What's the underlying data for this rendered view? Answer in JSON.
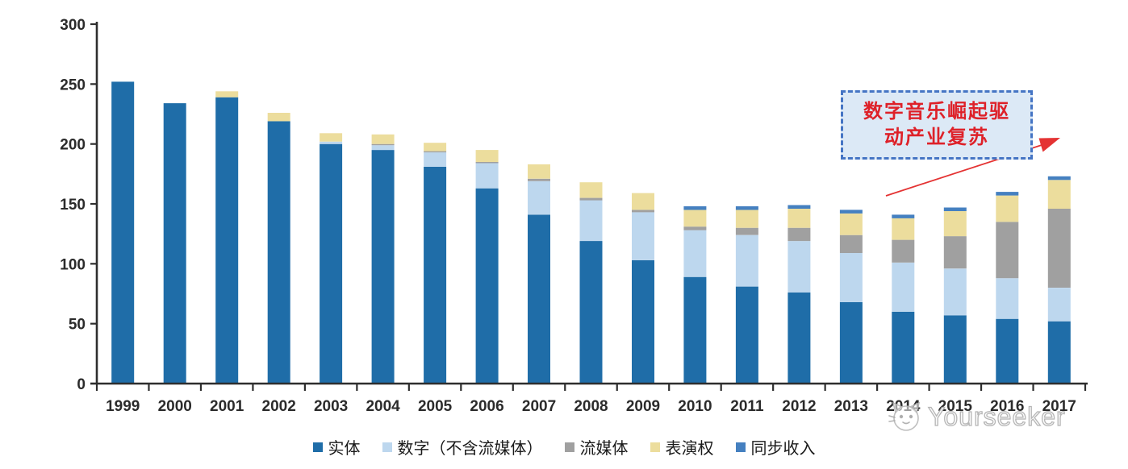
{
  "chart_data": {
    "type": "bar",
    "stacked": true,
    "title": "",
    "categories": [
      "1999",
      "2000",
      "2001",
      "2002",
      "2003",
      "2004",
      "2005",
      "2006",
      "2007",
      "2008",
      "2009",
      "2010",
      "2011",
      "2012",
      "2013",
      "2014",
      "2015",
      "2016",
      "2017"
    ],
    "series": [
      {
        "name": "实体",
        "color": "#1f6da8",
        "values": [
          252,
          234,
          239,
          219,
          200,
          195,
          181,
          163,
          141,
          119,
          103,
          89,
          81,
          76,
          68,
          60,
          57,
          54,
          52
        ]
      },
      {
        "name": "数字（不含流媒体）",
        "color": "#bdd7ee",
        "values": [
          0,
          0,
          0,
          0,
          2,
          4,
          12,
          21,
          28,
          34,
          40,
          39,
          43,
          43,
          41,
          41,
          39,
          34,
          28
        ]
      },
      {
        "name": "流媒体",
        "color": "#a0a0a0",
        "values": [
          0,
          0,
          0,
          0,
          0,
          1,
          1,
          1,
          2,
          2,
          2,
          3,
          6,
          11,
          15,
          19,
          27,
          47,
          66
        ]
      },
      {
        "name": "表演权",
        "color": "#ecdd9d",
        "values": [
          0,
          0,
          5,
          7,
          7,
          8,
          7,
          10,
          12,
          13,
          14,
          14,
          15,
          16,
          18,
          18,
          21,
          22,
          24
        ]
      },
      {
        "name": "同步收入",
        "color": "#4580c0",
        "values": [
          0,
          0,
          0,
          0,
          0,
          0,
          0,
          0,
          0,
          0,
          0,
          3,
          3,
          3,
          3,
          3,
          3,
          3,
          3
        ]
      }
    ],
    "xlabel": "",
    "ylabel": "",
    "ylim": [
      0,
      300
    ],
    "yticks": [
      0,
      50,
      100,
      150,
      200,
      250,
      300
    ],
    "grid": false,
    "legend_position": "bottom"
  },
  "annotation": {
    "line1": "数字音乐崛起驱",
    "line2": "动产业复苏"
  },
  "watermark": {
    "brand": "Yourseeker",
    "logo_icon": "cat-face-icon"
  },
  "colors": {
    "axis": "#2e2e2e",
    "tick_label": "#2b2b2b",
    "annotation_text": "#de2129",
    "annotation_border": "#4575c4",
    "annotation_fill": "#dce9f6",
    "arrow": "#e43333",
    "watermark_outline": "#c2c2c2"
  }
}
